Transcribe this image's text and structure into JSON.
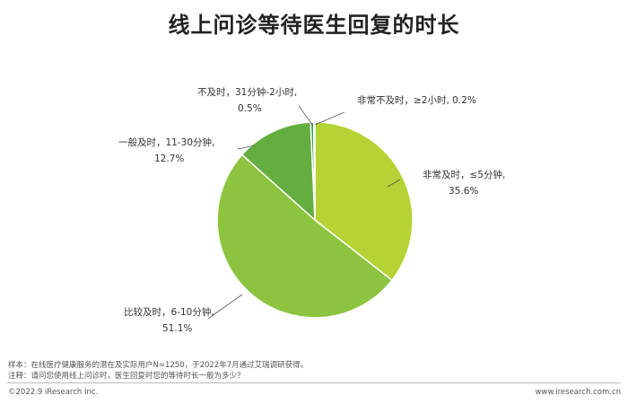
{
  "title": "线上问诊等待医生回复的时长",
  "chart_data": {
    "type": "pie",
    "slices": [
      {
        "label": "非常及时，≤5分钟,",
        "pct": "35.6%",
        "value": 35.6,
        "color": "#b5d334"
      },
      {
        "label": "比较及时，6-10分钟,",
        "pct": "51.1%",
        "value": 51.1,
        "color": "#8cc43f"
      },
      {
        "label": "一般及时，11-30分钟,",
        "pct": "12.7%",
        "value": 12.7,
        "color": "#64ae40"
      },
      {
        "label": "不及时，31分钟-2小时,",
        "pct": "0.5%",
        "value": 0.5,
        "color": "#3a9c4a"
      },
      {
        "label": "非常不及时，≥2小时, 0.2%",
        "pct": "",
        "value": 0.2,
        "color": "#4bb5d6"
      }
    ]
  },
  "footnote": {
    "sample": "样本：在线医疗健康服务的潜在及实际用户N=1250，于2022年7月通过艾瑞调研获得。",
    "note": "注释：请问您使用线上问诊时，医生回复时您的等待时长一般为多少？"
  },
  "copyright": "©2022.9 iResearch Inc.",
  "website": "www.iresearch.com.cn"
}
